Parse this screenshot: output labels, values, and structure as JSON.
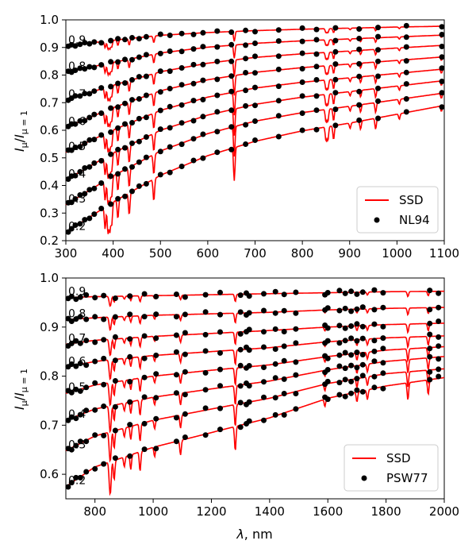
{
  "chart_data": [
    {
      "type": "line",
      "title": "",
      "ylabel": "I_μ/I_μ=1",
      "xlabel": "",
      "xlim": [
        300,
        1100
      ],
      "ylim": [
        0.2,
        1.0
      ],
      "xticks": [
        300,
        400,
        500,
        600,
        700,
        800,
        900,
        1000,
        1100
      ],
      "xtick_labels": [
        "300",
        "400",
        "500",
        "600",
        "700",
        "800",
        "900",
        "1000",
        "1100"
      ],
      "yticks": [
        0.2,
        0.3,
        0.4,
        0.5,
        0.6,
        0.7,
        0.8,
        0.9,
        1.0
      ],
      "ytick_labels": [
        "0.2",
        "0.3",
        "0.4",
        "0.5",
        "0.6",
        "0.7",
        "0.8",
        "0.9",
        "1.0"
      ],
      "legend": {
        "position": "bottom-right",
        "line_label": "SSD",
        "marker_label": "NL94"
      },
      "colors": {
        "line": "#ff0000",
        "marker": "#000000"
      },
      "mu_labels": [
        "0.2",
        "0.3",
        "0.4",
        "0.5",
        "0.6",
        "0.7",
        "0.8",
        "0.9"
      ],
      "series": [
        {
          "name": "0.2",
          "line_x": [
            300,
            400,
            500,
            600,
            700,
            800,
            900,
            1000,
            1100
          ],
          "line_y": [
            0.23,
            0.34,
            0.437,
            0.508,
            0.56,
            0.598,
            0.626,
            0.658,
            0.69
          ]
        },
        {
          "name": "0.3",
          "line_x": [
            300,
            400,
            500,
            600,
            700,
            800,
            900,
            1000,
            1100
          ],
          "line_y": [
            0.33,
            0.435,
            0.525,
            0.588,
            0.633,
            0.664,
            0.687,
            0.711,
            0.735
          ]
        },
        {
          "name": "0.4",
          "line_x": [
            300,
            400,
            500,
            600,
            700,
            800,
            900,
            1000,
            1100
          ],
          "line_y": [
            0.42,
            0.518,
            0.6,
            0.655,
            0.694,
            0.72,
            0.74,
            0.76,
            0.78
          ]
        },
        {
          "name": "0.5",
          "line_x": [
            300,
            400,
            500,
            600,
            700,
            800,
            900,
            1000,
            1100
          ],
          "line_y": [
            0.52,
            0.601,
            0.672,
            0.72,
            0.753,
            0.774,
            0.79,
            0.806,
            0.822
          ]
        },
        {
          "name": "0.6",
          "line_x": [
            300,
            400,
            500,
            600,
            700,
            800,
            900,
            1000,
            1100
          ],
          "line_y": [
            0.61,
            0.682,
            0.743,
            0.783,
            0.81,
            0.827,
            0.84,
            0.853,
            0.866
          ]
        },
        {
          "name": "0.7",
          "line_x": [
            300,
            400,
            500,
            600,
            700,
            800,
            900,
            1000,
            1100
          ],
          "line_y": [
            0.71,
            0.763,
            0.812,
            0.843,
            0.864,
            0.877,
            0.887,
            0.898,
            0.908
          ]
        },
        {
          "name": "0.8",
          "line_x": [
            300,
            400,
            500,
            600,
            700,
            800,
            900,
            1000,
            1100
          ],
          "line_y": [
            0.81,
            0.846,
            0.88,
            0.901,
            0.915,
            0.924,
            0.931,
            0.938,
            0.945
          ]
        },
        {
          "name": "0.9",
          "line_x": [
            300,
            400,
            500,
            600,
            700,
            800,
            900,
            1000,
            1100
          ],
          "line_y": [
            0.905,
            0.926,
            0.944,
            0.954,
            0.961,
            0.966,
            0.97,
            0.974,
            0.977
          ]
        }
      ],
      "points_x": [
        305,
        312,
        320,
        330,
        340,
        350,
        360,
        375,
        395,
        410,
        425,
        440,
        455,
        470,
        500,
        520,
        545,
        570,
        590,
        620,
        650,
        680,
        700,
        750,
        800,
        830,
        870,
        920,
        960,
        1020,
        1095
      ],
      "spectral_lines": [
        {
          "x": 383,
          "h": 0.08
        },
        {
          "x": 389,
          "h": 0.1
        },
        {
          "x": 393,
          "h": 0.1
        },
        {
          "x": 397,
          "h": 0.08
        },
        {
          "x": 410,
          "h": 0.07
        },
        {
          "x": 434,
          "h": 0.08
        },
        {
          "x": 486,
          "h": 0.08
        },
        {
          "x": 656,
          "h": 0.12
        },
        {
          "x": 850,
          "h": 0.05
        },
        {
          "x": 854,
          "h": 0.05
        },
        {
          "x": 866,
          "h": 0.05
        },
        {
          "x": 901,
          "h": 0.02
        },
        {
          "x": 923,
          "h": 0.03
        },
        {
          "x": 955,
          "h": 0.04
        },
        {
          "x": 1005,
          "h": 0.02
        },
        {
          "x": 1094,
          "h": 0.02
        }
      ]
    },
    {
      "type": "line",
      "title": "",
      "ylabel": "I_μ/I_μ=1",
      "xlabel": "λ, nm",
      "xlim": [
        700,
        2000
      ],
      "ylim": [
        0.55,
        1.0
      ],
      "xticks": [
        800,
        1000,
        1200,
        1400,
        1600,
        1800,
        2000
      ],
      "xtick_labels": [
        "800",
        "1000",
        "1200",
        "1400",
        "1600",
        "1800",
        "2000"
      ],
      "yticks": [
        0.6,
        0.7,
        0.8,
        0.9,
        1.0
      ],
      "ytick_labels": [
        "0.6",
        "0.7",
        "0.8",
        "0.9",
        "1.0"
      ],
      "legend": {
        "position": "bottom-right",
        "line_label": "SSD",
        "marker_label": "PSW77"
      },
      "colors": {
        "line": "#ff0000",
        "marker": "#000000"
      },
      "mu_labels": [
        "0.2",
        "0.3",
        "0.4",
        "0.5",
        "0.6",
        "0.7",
        "0.8",
        "0.9"
      ],
      "series": [
        {
          "name": "0.2",
          "line_x": [
            700,
            800,
            1000,
            1200,
            1400,
            1600,
            1800,
            2000
          ],
          "line_y": [
            0.575,
            0.615,
            0.655,
            0.685,
            0.715,
            0.755,
            0.78,
            0.797
          ]
        },
        {
          "name": "0.3",
          "line_x": [
            700,
            800,
            1000,
            1200,
            1400,
            1600,
            1800,
            2000
          ],
          "line_y": [
            0.648,
            0.678,
            0.71,
            0.733,
            0.755,
            0.785,
            0.805,
            0.815
          ]
        },
        {
          "name": "0.4",
          "line_x": [
            700,
            800,
            1000,
            1200,
            1400,
            1600,
            1800,
            2000
          ],
          "line_y": [
            0.71,
            0.733,
            0.757,
            0.774,
            0.79,
            0.813,
            0.83,
            0.84
          ]
        },
        {
          "name": "0.5",
          "line_x": [
            700,
            800,
            1000,
            1200,
            1400,
            1600,
            1800,
            2000
          ],
          "line_y": [
            0.765,
            0.782,
            0.8,
            0.812,
            0.823,
            0.84,
            0.853,
            0.86
          ]
        },
        {
          "name": "0.6",
          "line_x": [
            700,
            800,
            1000,
            1200,
            1400,
            1600,
            1800,
            2000
          ],
          "line_y": [
            0.818,
            0.83,
            0.842,
            0.85,
            0.858,
            0.87,
            0.878,
            0.882
          ]
        },
        {
          "name": "0.7",
          "line_x": [
            700,
            800,
            1000,
            1200,
            1400,
            1600,
            1800,
            2000
          ],
          "line_y": [
            0.865,
            0.873,
            0.881,
            0.887,
            0.893,
            0.9,
            0.905,
            0.908
          ]
        },
        {
          "name": "0.8",
          "line_x": [
            700,
            800,
            1000,
            1200,
            1400,
            1600,
            1800,
            2000
          ],
          "line_y": [
            0.915,
            0.919,
            0.924,
            0.927,
            0.93,
            0.935,
            0.938,
            0.94
          ]
        },
        {
          "name": "0.9",
          "line_x": [
            700,
            800,
            1000,
            1200,
            1400,
            1600,
            1800,
            2000
          ],
          "line_y": [
            0.96,
            0.962,
            0.964,
            0.966,
            0.968,
            0.97,
            0.972,
            0.973
          ]
        }
      ],
      "points_x": [
        708,
        720,
        735,
        750,
        770,
        800,
        830,
        870,
        920,
        970,
        1010,
        1080,
        1110,
        1180,
        1230,
        1300,
        1320,
        1330,
        1380,
        1420,
        1450,
        1490,
        1590,
        1600,
        1640,
        1660,
        1680,
        1700,
        1720,
        1760,
        1790,
        1950,
        1980
      ],
      "spectral_lines": [
        {
          "x": 850,
          "h": 0.04
        },
        {
          "x": 854,
          "h": 0.05
        },
        {
          "x": 866,
          "h": 0.04
        },
        {
          "x": 901,
          "h": 0.02
        },
        {
          "x": 923,
          "h": 0.03
        },
        {
          "x": 955,
          "h": 0.04
        },
        {
          "x": 1005,
          "h": 0.02
        },
        {
          "x": 1094,
          "h": 0.03
        },
        {
          "x": 1282,
          "h": 0.05
        },
        {
          "x": 1590,
          "h": 0.015
        },
        {
          "x": 1700,
          "h": 0.02
        },
        {
          "x": 1736,
          "h": 0.02
        },
        {
          "x": 1875,
          "h": 0.035
        },
        {
          "x": 1945,
          "h": 0.03
        }
      ]
    }
  ]
}
